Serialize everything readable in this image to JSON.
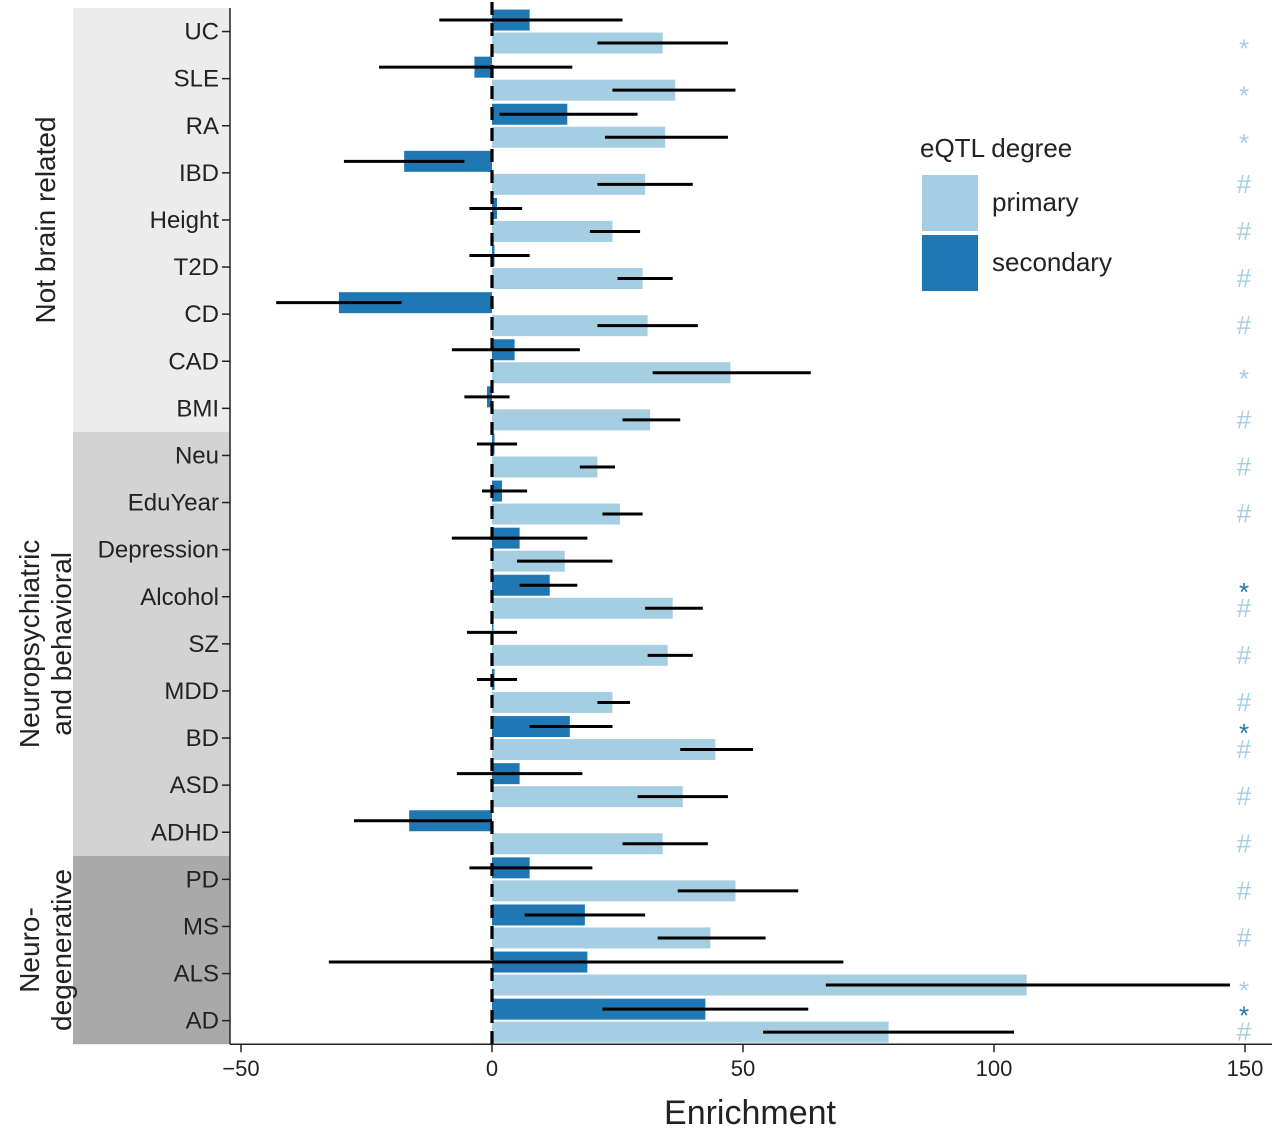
{
  "chart_data": {
    "type": "bar",
    "orientation": "horizontal",
    "xlabel": "Enrichment",
    "xlim": [
      -51,
      155
    ],
    "xticks": [
      -50,
      0,
      50,
      100,
      150
    ],
    "reference_line": 0,
    "grid": false,
    "categories": [
      "UC",
      "SLE",
      "RA",
      "IBD",
      "Height",
      "T2D",
      "CD",
      "CAD",
      "BMI",
      "Neu",
      "EduYear",
      "Depression",
      "Alcohol",
      "SZ",
      "MDD",
      "BD",
      "ASD",
      "ADHD",
      "PD",
      "MS",
      "ALS",
      "AD"
    ],
    "groups": [
      {
        "name": "Not brain related",
        "from": 0,
        "to": 8,
        "color": "#ececec"
      },
      {
        "name": "Neuropsychiatric\nand behavioral",
        "from": 9,
        "to": 17,
        "color": "#d3d3d3"
      },
      {
        "name": "Neuro-\ndegenerative",
        "from": 18,
        "to": 21,
        "color": "#a9a9a9"
      }
    ],
    "legend": {
      "title": "eQTL degree",
      "position": "right",
      "entries": [
        {
          "label": "primary",
          "color": "#a6cee3"
        },
        {
          "label": "secondary",
          "color": "#1f78b4"
        }
      ]
    },
    "series": [
      {
        "name": "secondary",
        "color": "#1f78b4",
        "values": [
          7.5,
          -3.5,
          15,
          -17.5,
          1,
          0.5,
          -30.5,
          4.5,
          -1,
          0.5,
          2,
          5.5,
          11.5,
          0,
          0.5,
          15.5,
          5.5,
          -16.5,
          7.5,
          18.5,
          19,
          42.5
        ],
        "err_low": [
          -10.5,
          -22.5,
          1.5,
          -29.5,
          -4.5,
          -4.5,
          -43,
          -8,
          -5.5,
          -3,
          -2,
          -8,
          5.5,
          -5,
          -3,
          7.5,
          -7,
          -27.5,
          -4.5,
          6.5,
          -32.5,
          22
        ],
        "err_high": [
          26,
          16,
          29,
          -5.5,
          6,
          7.5,
          -18,
          17.5,
          3.5,
          5,
          7,
          19,
          17,
          5,
          5,
          24,
          18,
          0,
          20,
          30.5,
          70,
          63
        ]
      },
      {
        "name": "primary",
        "color": "#a6cee3",
        "values": [
          34,
          36.5,
          34.5,
          30.5,
          24,
          30,
          31,
          47.5,
          31.5,
          21,
          25.5,
          14.5,
          36,
          35,
          24,
          44.5,
          38,
          34,
          48.5,
          43.5,
          106.5,
          79
        ],
        "err_low": [
          21,
          24,
          22.5,
          21,
          19.5,
          25,
          21,
          32,
          26,
          17.5,
          22,
          5,
          30.5,
          31,
          21,
          37.5,
          29,
          26,
          37,
          33,
          66.5,
          54
        ],
        "err_high": [
          47,
          48.5,
          47,
          40,
          29.5,
          36,
          41,
          63.5,
          37.5,
          24.5,
          30,
          24,
          42,
          40,
          27.5,
          52,
          47,
          43,
          61,
          54.5,
          147,
          104
        ]
      }
    ],
    "significance": [
      {
        "category": "UC",
        "series": "primary",
        "mark": "*"
      },
      {
        "category": "SLE",
        "series": "primary",
        "mark": "*"
      },
      {
        "category": "RA",
        "series": "primary",
        "mark": "*"
      },
      {
        "category": "IBD",
        "series": "primary",
        "mark": "#"
      },
      {
        "category": "Height",
        "series": "primary",
        "mark": "#"
      },
      {
        "category": "T2D",
        "series": "primary",
        "mark": "#"
      },
      {
        "category": "CD",
        "series": "primary",
        "mark": "#"
      },
      {
        "category": "CAD",
        "series": "primary",
        "mark": "*"
      },
      {
        "category": "BMI",
        "series": "primary",
        "mark": "#"
      },
      {
        "category": "Neu",
        "series": "primary",
        "mark": "#"
      },
      {
        "category": "EduYear",
        "series": "primary",
        "mark": "#"
      },
      {
        "category": "Alcohol",
        "series": "secondary",
        "mark": "*"
      },
      {
        "category": "Alcohol",
        "series": "primary",
        "mark": "#"
      },
      {
        "category": "SZ",
        "series": "primary",
        "mark": "#"
      },
      {
        "category": "MDD",
        "series": "primary",
        "mark": "#"
      },
      {
        "category": "BD",
        "series": "secondary",
        "mark": "*"
      },
      {
        "category": "BD",
        "series": "primary",
        "mark": "#"
      },
      {
        "category": "ASD",
        "series": "primary",
        "mark": "#"
      },
      {
        "category": "ADHD",
        "series": "primary",
        "mark": "#"
      },
      {
        "category": "PD",
        "series": "primary",
        "mark": "#"
      },
      {
        "category": "MS",
        "series": "primary",
        "mark": "#"
      },
      {
        "category": "ALS",
        "series": "primary",
        "mark": "*"
      },
      {
        "category": "AD",
        "series": "secondary",
        "mark": "*"
      },
      {
        "category": "AD",
        "series": "primary",
        "mark": "#"
      }
    ]
  }
}
